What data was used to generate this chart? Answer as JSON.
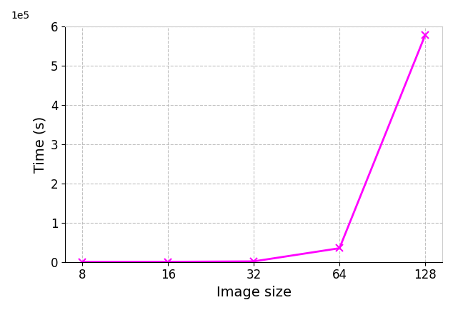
{
  "x": [
    8,
    16,
    32,
    64,
    128
  ],
  "y": [
    100,
    400,
    1500,
    35000,
    578000
  ],
  "line_color": "#ff00ff",
  "marker": "x",
  "marker_size": 7,
  "marker_linewidth": 1.5,
  "linewidth": 2,
  "xlabel": "Image size",
  "ylabel": "Time (s)",
  "ylim": [
    0,
    600000
  ],
  "yticks": [
    0,
    100000,
    200000,
    300000,
    400000,
    500000,
    600000
  ],
  "xtick_labels": [
    "8",
    "16",
    "32",
    "64",
    "128"
  ],
  "grid_color": "#bbbbbb",
  "grid_linestyle": "--",
  "background_color": "#ffffff",
  "xlabel_fontsize": 14,
  "ylabel_fontsize": 14,
  "tick_fontsize": 12
}
